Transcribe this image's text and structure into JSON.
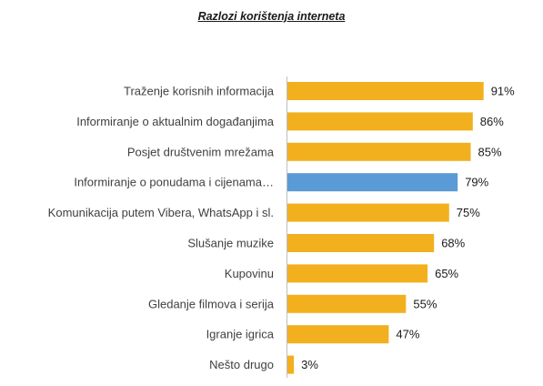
{
  "chart_data": {
    "type": "bar",
    "orientation": "horizontal",
    "title": "Razlozi korištenja interneta",
    "categories": [
      "Traženje korisnih informacija",
      "Informiranje o aktualnim događanjima",
      "Posjet društvenim mrežama",
      "Informiranje o ponudama i cijenama…",
      "Komunikacija putem Vibera, WhatsApp i sl.",
      "Slušanje muzike",
      "Kupovinu",
      "Gledanje filmova i serija",
      "Igranje igrica",
      "Nešto drugo"
    ],
    "values": [
      91,
      86,
      85,
      79,
      75,
      68,
      65,
      55,
      47,
      3
    ],
    "value_labels": [
      "91%",
      "86%",
      "85%",
      "79%",
      "75%",
      "68%",
      "65%",
      "55%",
      "47%",
      "3%"
    ],
    "highlight_index": 3,
    "xlim": [
      0,
      100
    ],
    "grid": false,
    "legend": "none",
    "colors": {
      "bar": "#f2b01e",
      "highlight": "#5b9bd5",
      "axis": "#bfbfbf"
    }
  }
}
